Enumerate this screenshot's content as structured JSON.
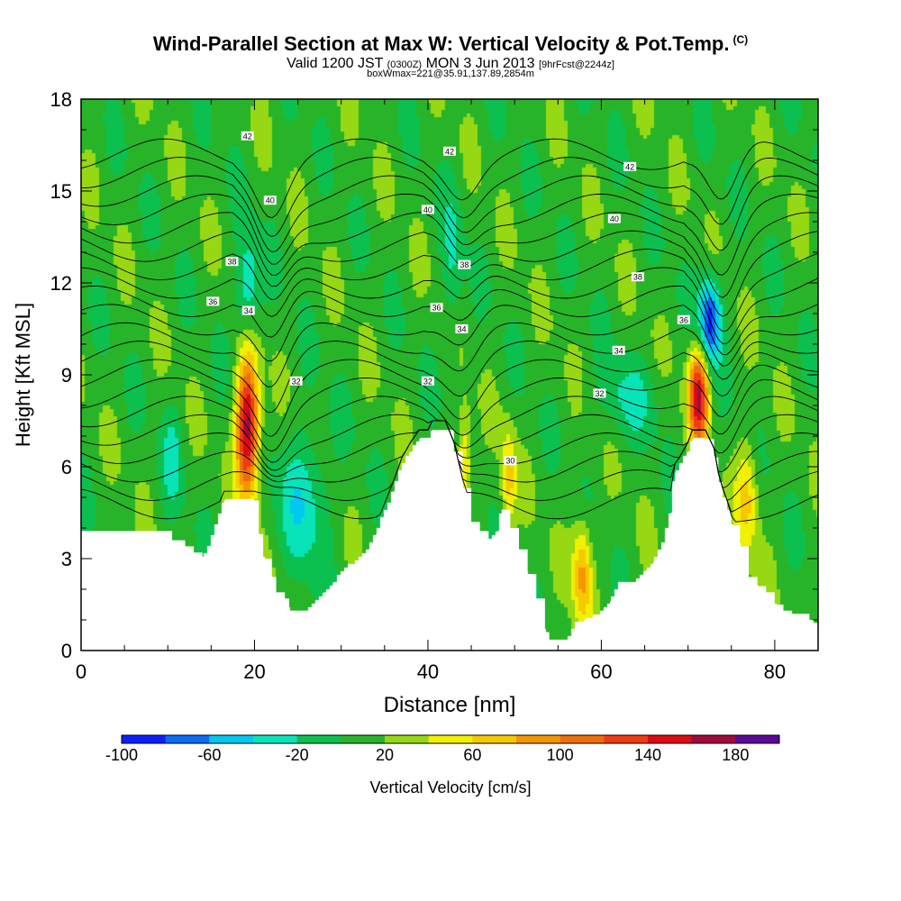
{
  "header": {
    "title": "Wind-Parallel Section at Max W: Vertical Velocity & Pot.Temp.",
    "copyright": "(C)",
    "valid_prefix": "Valid 1200 JST",
    "valid_utc": "(0300Z)",
    "valid_date": "MON 3 Jun 2013",
    "forecast": "[9hrFcst@2244z]",
    "boxinfo": "boxWmax=221@35.91,137.89,2854m"
  },
  "chart_data": {
    "type": "heatmap",
    "title": "Wind-Parallel Section at Max W: Vertical Velocity & Pot.Temp.",
    "xlabel": "Distance [nm]",
    "ylabel": "Height [Kft MSL]",
    "xlim": [
      0,
      85
    ],
    "ylim": [
      0,
      18
    ],
    "x_ticks": [
      "0",
      "20",
      "40",
      "60",
      "80"
    ],
    "y_ticks": [
      "0",
      "3",
      "6",
      "9",
      "12",
      "15",
      "18"
    ],
    "colorbar": {
      "label": "Vertical Velocity [cm/s]",
      "tick_labels": [
        "-100",
        "-60",
        "-20",
        "20",
        "60",
        "100",
        "140",
        "180"
      ],
      "ticks": [
        -100,
        -60,
        -20,
        20,
        60,
        100,
        140,
        180
      ],
      "range": [
        -100,
        200
      ],
      "colors": [
        "#0f1eff",
        "#0a6cf5",
        "#00c8f0",
        "#08e4b8",
        "#0cc050",
        "#28b428",
        "#96d814",
        "#f0f000",
        "#f5c800",
        "#f59600",
        "#f06e0a",
        "#ef3c14",
        "#dc0a14",
        "#a00a3c",
        "#5a0a96"
      ]
    },
    "terrain_top_kft": [
      [
        0,
        3.9
      ],
      [
        9.5,
        3.9
      ],
      [
        10.5,
        3.6
      ],
      [
        12,
        3.4
      ],
      [
        13,
        3.2
      ],
      [
        14,
        3.0
      ],
      [
        15,
        3.6
      ],
      [
        16.5,
        4.9
      ],
      [
        20,
        4.9
      ],
      [
        20.5,
        3.8
      ],
      [
        21,
        3.0
      ],
      [
        22,
        2.4
      ],
      [
        22.5,
        1.9
      ],
      [
        23.5,
        1.7
      ],
      [
        24,
        1.3
      ],
      [
        26,
        1.3
      ],
      [
        27,
        1.6
      ],
      [
        28,
        1.9
      ],
      [
        29,
        2.2
      ],
      [
        30,
        2.5
      ],
      [
        31,
        2.8
      ],
      [
        32,
        3.0
      ],
      [
        33,
        3.3
      ],
      [
        34,
        3.8
      ],
      [
        35,
        4.5
      ],
      [
        36,
        5.2
      ],
      [
        37,
        6.0
      ],
      [
        38,
        6.5
      ],
      [
        39,
        6.9
      ],
      [
        40,
        6.9
      ],
      [
        40.5,
        7.2
      ],
      [
        42,
        7.2
      ],
      [
        43,
        6.5
      ],
      [
        44,
        5.3
      ],
      [
        45,
        4.2
      ],
      [
        46,
        3.9
      ],
      [
        47,
        3.6
      ],
      [
        48,
        3.9
      ],
      [
        48.5,
        4.6
      ],
      [
        49.5,
        4.0
      ],
      [
        50.5,
        3.3
      ],
      [
        51.5,
        2.5
      ],
      [
        52.5,
        1.7
      ],
      [
        53.5,
        0.6
      ],
      [
        54,
        0.3
      ],
      [
        56,
        0.3
      ],
      [
        57,
        0.9
      ],
      [
        58,
        1.0
      ],
      [
        59,
        1.1
      ],
      [
        60,
        1.3
      ],
      [
        61,
        1.6
      ],
      [
        62,
        2.2
      ],
      [
        64,
        2.3
      ],
      [
        65,
        2.6
      ],
      [
        66,
        2.9
      ],
      [
        67,
        3.4
      ],
      [
        68,
        4.5
      ],
      [
        68.5,
        5.8
      ],
      [
        69,
        6.0
      ],
      [
        70,
        6.5
      ],
      [
        70.5,
        6.9
      ],
      [
        72,
        6.9
      ],
      [
        73,
        6.3
      ],
      [
        73.5,
        5.5
      ],
      [
        74,
        5.0
      ],
      [
        74.5,
        4.6
      ],
      [
        75,
        4.1
      ],
      [
        76,
        3.4
      ],
      [
        77,
        2.4
      ],
      [
        78,
        2.1
      ],
      [
        79,
        1.9
      ],
      [
        80,
        1.5
      ],
      [
        81,
        1.3
      ],
      [
        82,
        1.2
      ],
      [
        84,
        1.0
      ],
      [
        84.5,
        0.9
      ],
      [
        85,
        0.7
      ]
    ],
    "vertical_velocity_features": [
      {
        "x": 19.2,
        "z": 7.3,
        "peak_cm_s": 170,
        "x_halfwidth_nm": 0.9,
        "z_halfwidth_kft": 1.6
      },
      {
        "x": 71.2,
        "z": 8.3,
        "peak_cm_s": 150,
        "x_halfwidth_nm": 0.8,
        "z_halfwidth_kft": 1.1
      },
      {
        "x": 44.2,
        "z": 6.0,
        "peak_cm_s": 65,
        "x_halfwidth_nm": 0.6,
        "z_halfwidth_kft": 1.2
      },
      {
        "x": 49.3,
        "z": 5.5,
        "peak_cm_s": 55,
        "x_halfwidth_nm": 0.6,
        "z_halfwidth_kft": 1.2
      },
      {
        "x": 57.8,
        "z": 2.5,
        "peak_cm_s": 75,
        "x_halfwidth_nm": 0.8,
        "z_halfwidth_kft": 1.2
      },
      {
        "x": 76.8,
        "z": 5.0,
        "peak_cm_s": 55,
        "x_halfwidth_nm": 0.9,
        "z_halfwidth_kft": 1.3
      },
      {
        "x": 72.5,
        "z": 10.8,
        "peak_cm_s": -100,
        "x_halfwidth_nm": 0.9,
        "z_halfwidth_kft": 1.0
      },
      {
        "x": 19.2,
        "z": 11.8,
        "peak_cm_s": -55,
        "x_halfwidth_nm": 1.0,
        "z_halfwidth_kft": 1.2
      },
      {
        "x": 25.8,
        "z": 5.0,
        "peak_cm_s": -45,
        "x_halfwidth_nm": 2.0,
        "z_halfwidth_kft": 1.6
      },
      {
        "x": 10.5,
        "z": 6.3,
        "peak_cm_s": -30,
        "x_halfwidth_nm": 0.8,
        "z_halfwidth_kft": 1.2
      },
      {
        "x": 42.8,
        "z": 12.5,
        "peak_cm_s": -30,
        "x_halfwidth_nm": 0.8,
        "z_halfwidth_kft": 1.8
      },
      {
        "x": 63.0,
        "z": 8.2,
        "peak_cm_s": -30,
        "x_halfwidth_nm": 2.5,
        "z_halfwidth_kft": 0.9
      }
    ],
    "potential_temperature_contours": [
      {
        "label": "30",
        "label_x": 49.5,
        "label_z": 6.2
      },
      {
        "label": "32",
        "label_x": 24.8,
        "label_z": 8.8
      },
      {
        "label": "32",
        "label_x": 40.0,
        "label_z": 8.8
      },
      {
        "label": "32",
        "label_x": 59.8,
        "label_z": 8.4
      },
      {
        "label": "34",
        "label_x": 19.3,
        "label_z": 11.1
      },
      {
        "label": "34",
        "label_x": 43.9,
        "label_z": 10.5
      },
      {
        "label": "34",
        "label_x": 62.0,
        "label_z": 9.8
      },
      {
        "label": "36",
        "label_x": 15.2,
        "label_z": 11.4
      },
      {
        "label": "36",
        "label_x": 41.0,
        "label_z": 11.2
      },
      {
        "label": "36",
        "label_x": 69.5,
        "label_z": 10.8
      },
      {
        "label": "38",
        "label_x": 17.4,
        "label_z": 12.7
      },
      {
        "label": "38",
        "label_x": 44.2,
        "label_z": 12.6
      },
      {
        "label": "38",
        "label_x": 64.2,
        "label_z": 12.2
      },
      {
        "label": "40",
        "label_x": 21.8,
        "label_z": 14.7
      },
      {
        "label": "40",
        "label_x": 40.0,
        "label_z": 14.4
      },
      {
        "label": "40",
        "label_x": 61.5,
        "label_z": 14.1
      },
      {
        "label": "42",
        "label_x": 19.2,
        "label_z": 16.8
      },
      {
        "label": "42",
        "label_x": 42.5,
        "label_z": 16.3
      },
      {
        "label": "42",
        "label_x": 63.3,
        "label_z": 15.8
      }
    ]
  }
}
